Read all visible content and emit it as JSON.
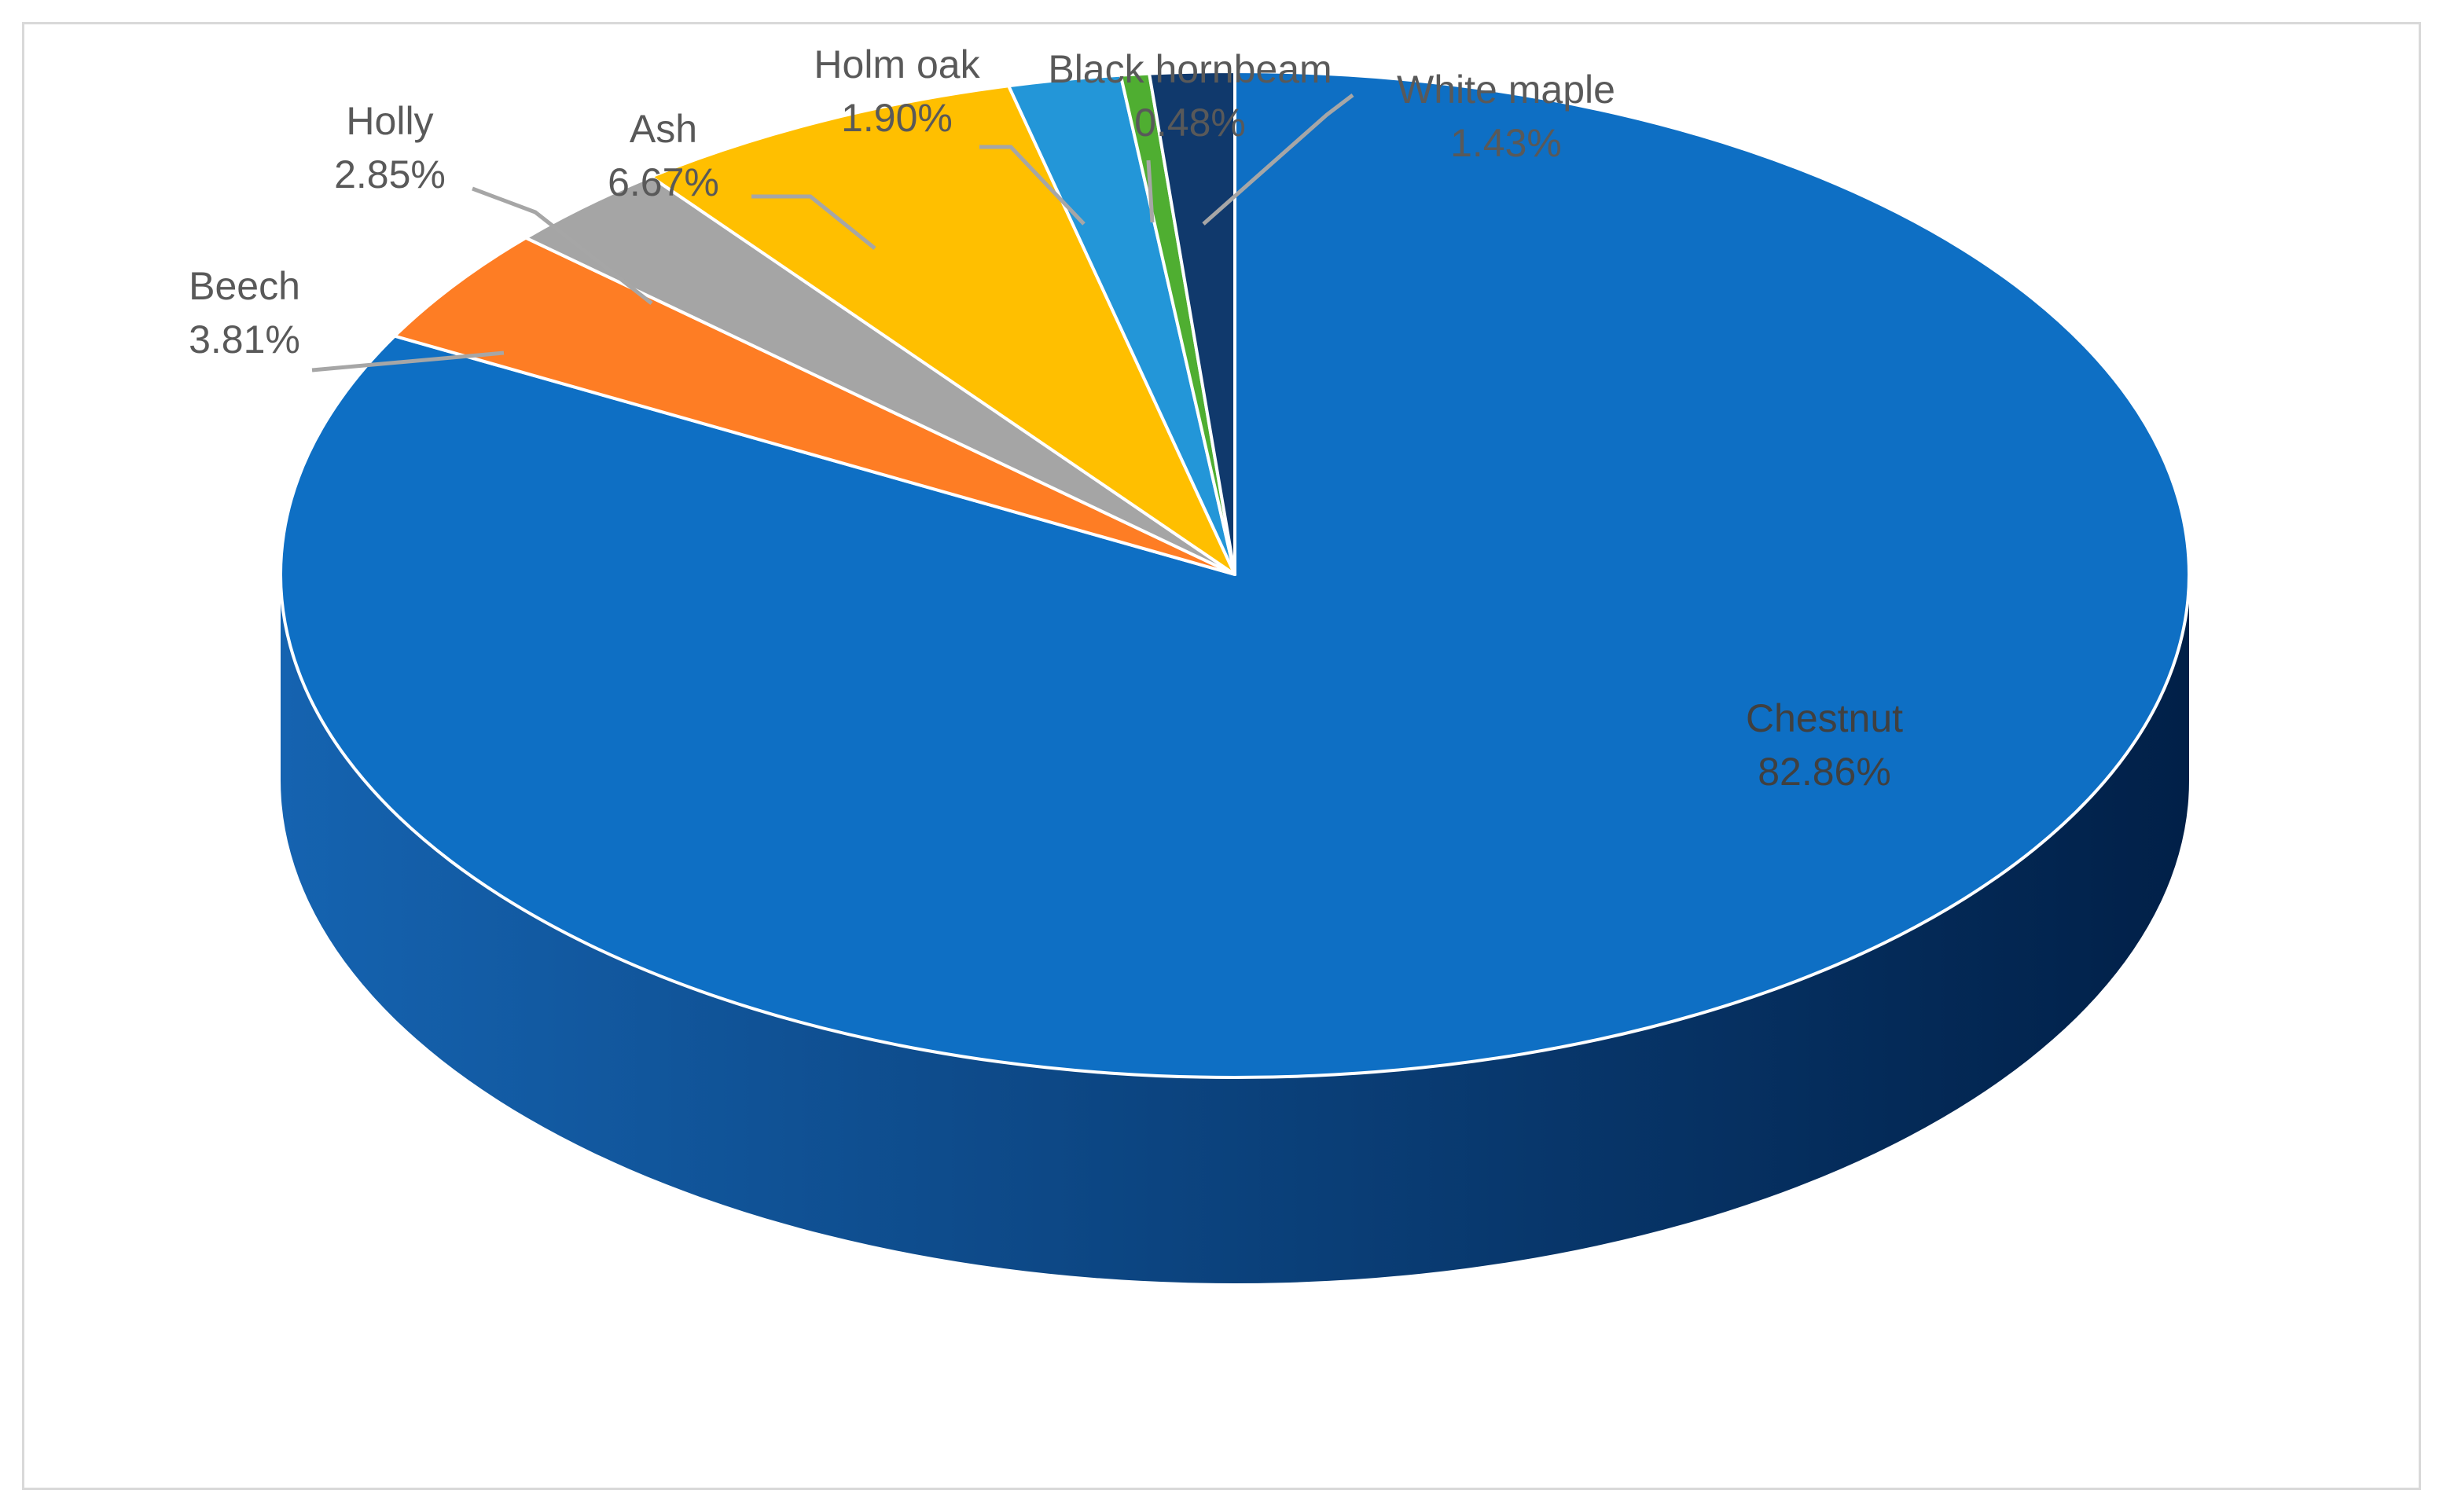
{
  "chart_data": {
    "type": "pie",
    "style": "3d",
    "start": "top, clockwise",
    "slices": [
      {
        "label": "Chestnut",
        "value": 82.86,
        "value_label": "82.86%",
        "color": "#0E6FC4",
        "label_position": "inside"
      },
      {
        "label": "Beech",
        "value": 3.81,
        "value_label": "3.81%",
        "color": "#FE7D24",
        "label_position": "outside"
      },
      {
        "label": "Holly",
        "value": 2.85,
        "value_label": "2.85%",
        "color": "#A5A5A5",
        "label_position": "outside"
      },
      {
        "label": "Ash",
        "value": 6.67,
        "value_label": "6.67%",
        "color": "#FFBF00",
        "label_position": "outside"
      },
      {
        "label": "Holm oak",
        "value": 1.9,
        "value_label": "1.90%",
        "color": "#2396D8",
        "label_position": "outside"
      },
      {
        "label": "Black hornbeam",
        "value": 0.48,
        "value_label": "0.48%",
        "color": "#4FAE31",
        "label_position": "outside"
      },
      {
        "label": "White maple",
        "value": 1.43,
        "value_label": "1.43%",
        "color": "#10396C",
        "label_position": "outside"
      }
    ],
    "side_color_light": "#1563B0",
    "side_color_dark": "#012048",
    "leader_line_color": "#a6a6a6"
  }
}
